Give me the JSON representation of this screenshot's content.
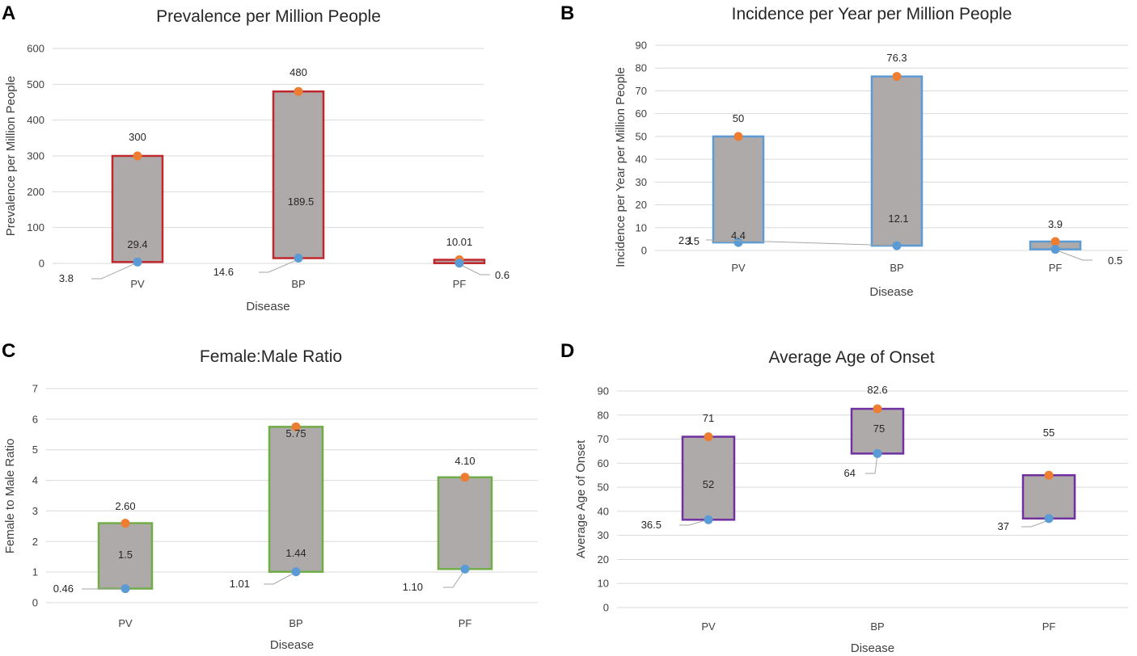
{
  "chart_data": [
    {
      "panel": "A",
      "type": "floating-bar",
      "title": "Prevalence per Million People",
      "xlabel": "Disease",
      "ylabel": "Prevalence per Million People",
      "categories": [
        "PV",
        "BP",
        "PF"
      ],
      "series": [
        {
          "name": "Low",
          "values": [
            3.8,
            14.6,
            0.6
          ]
        },
        {
          "name": "High",
          "values": [
            300,
            480,
            10.01
          ]
        },
        {
          "name": "Mid",
          "values": [
            29.4,
            189.5,
            null
          ]
        }
      ],
      "low_labels": [
        "3.8",
        "14.6",
        "0.6"
      ],
      "high_labels": [
        "300",
        "480",
        "10.01"
      ],
      "mid_labels": [
        "29.4",
        "189.5",
        ""
      ],
      "ylim": [
        0,
        600
      ],
      "ytick_step": 100,
      "yticks": [
        "0",
        "100",
        "200",
        "300",
        "400",
        "500",
        "600"
      ],
      "border_color": "#c0282d"
    },
    {
      "panel": "B",
      "type": "floating-bar",
      "title": "Incidence per Year per Million People",
      "xlabel": "Disease",
      "ylabel": "Incidence per Year per  Million People",
      "categories": [
        "PV",
        "BP",
        "PF"
      ],
      "series": [
        {
          "name": "Low",
          "values": [
            3.5,
            2.1,
            0.5
          ]
        },
        {
          "name": "High",
          "values": [
            50,
            76.3,
            3.9
          ]
        },
        {
          "name": "Mid",
          "values": [
            4.4,
            12.1,
            null
          ]
        }
      ],
      "low_labels": [
        "3.5",
        "2.1",
        "0.5"
      ],
      "high_labels": [
        "50",
        "76.3",
        "3.9"
      ],
      "mid_labels": [
        "4.4",
        "12.1",
        ""
      ],
      "ylim": [
        0,
        90
      ],
      "ytick_step": 10,
      "yticks": [
        "0",
        "10",
        "20",
        "30",
        "40",
        "50",
        "60",
        "70",
        "80",
        "90"
      ],
      "border_color": "#5b9bd5"
    },
    {
      "panel": "C",
      "type": "floating-bar",
      "title": "Female:Male Ratio",
      "xlabel": "Disease",
      "ylabel": "Female to Male Ratio",
      "categories": [
        "PV",
        "BP",
        "PF"
      ],
      "series": [
        {
          "name": "Low",
          "values": [
            0.46,
            1.01,
            1.1
          ]
        },
        {
          "name": "High",
          "values": [
            2.6,
            5.75,
            4.1
          ]
        },
        {
          "name": "Mid",
          "values": [
            1.5,
            1.44,
            null
          ]
        }
      ],
      "low_labels": [
        "0.46",
        "1.01",
        "1.10"
      ],
      "high_labels": [
        "2.60",
        "5.75",
        "4.10"
      ],
      "mid_labels": [
        "1.5",
        "1.44",
        ""
      ],
      "ylim": [
        0,
        7
      ],
      "ytick_step": 1,
      "yticks": [
        "0",
        "1",
        "2",
        "3",
        "4",
        "5",
        "6",
        "7"
      ],
      "border_color": "#70ad47"
    },
    {
      "panel": "D",
      "type": "floating-bar",
      "title": "Average Age of Onset",
      "xlabel": "Disease",
      "ylabel": "Average Age of Onset",
      "categories": [
        "PV",
        "BP",
        "PF"
      ],
      "series": [
        {
          "name": "Low",
          "values": [
            36.5,
            64,
            37
          ]
        },
        {
          "name": "High",
          "values": [
            71,
            82.6,
            55
          ]
        },
        {
          "name": "Mid",
          "values": [
            52,
            75,
            null
          ]
        }
      ],
      "low_labels": [
        "36.5",
        "64",
        "37"
      ],
      "high_labels": [
        "71",
        "82.6",
        "55"
      ],
      "mid_labels": [
        "52",
        "75",
        ""
      ],
      "ylim": [
        0,
        90
      ],
      "ytick_step": 10,
      "yticks": [
        "0",
        "10",
        "20",
        "30",
        "40",
        "50",
        "60",
        "70",
        "80",
        "90"
      ],
      "border_color": "#7030a0"
    }
  ],
  "colors": {
    "bar_fill": "#aeaaaa",
    "high_marker": "#ed7d31",
    "low_marker": "#5b9bd5",
    "gridline": "#d9d9d9"
  }
}
